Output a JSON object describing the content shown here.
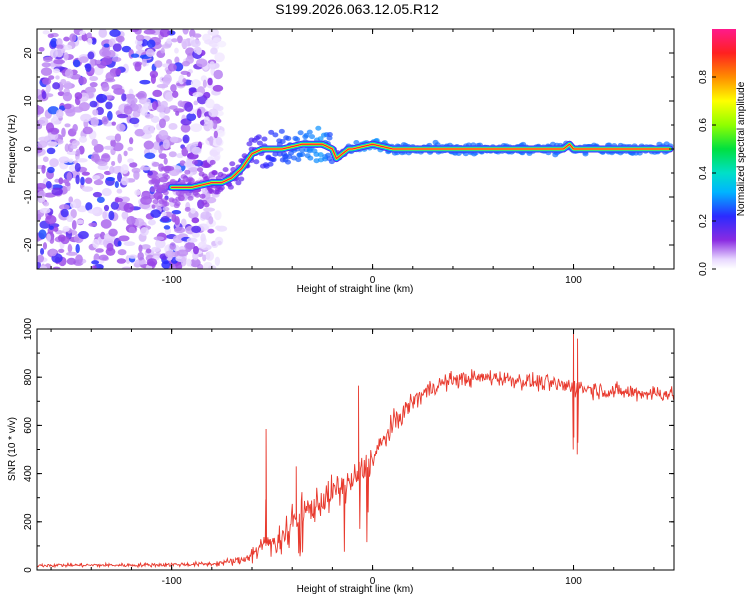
{
  "title": "S199.2026.063.12.05.R12",
  "chart_data": [
    {
      "type": "heatmap",
      "xlabel": "Height of straight line (km)",
      "ylabel": "Frequency (Hz)",
      "xlim": [
        -167,
        150
      ],
      "ylim": [
        -25,
        25
      ],
      "xticks": [
        -100,
        0,
        100
      ],
      "yticks": [
        -20,
        -10,
        0,
        10,
        20
      ],
      "colorbar": {
        "label": "Normalized spectral amplitude",
        "range": [
          0,
          1
        ],
        "ticks": [
          0.0,
          0.2,
          0.4,
          0.6,
          0.8
        ],
        "tick_labels": [
          "0.0",
          "0.2",
          "0.4",
          "0.6",
          "0.8"
        ]
      },
      "noise_region_x": [
        -167,
        -75
      ],
      "ridge": {
        "x": [
          -100,
          -90,
          -80,
          -75,
          -70,
          -65,
          -60,
          -55,
          -50,
          -45,
          -40,
          -35,
          -30,
          -25,
          -20,
          -18,
          -15,
          -12,
          -10,
          -5,
          0,
          5,
          10,
          20,
          40,
          60,
          80,
          95,
          98,
          100,
          120,
          148
        ],
        "freq": [
          -8,
          -8,
          -7,
          -7,
          -6,
          -4,
          -1,
          0,
          0,
          0,
          0.5,
          1,
          1,
          1,
          0,
          -2,
          -1,
          0,
          0,
          0.5,
          1,
          0.5,
          0,
          0,
          0,
          0,
          0,
          0,
          1,
          0,
          0,
          0
        ],
        "amp": [
          0.25,
          0.35,
          0.4,
          0.45,
          0.5,
          0.55,
          0.6,
          0.65,
          0.75,
          0.8,
          0.85,
          0.9,
          0.95,
          1.0,
          0.8,
          0.6,
          0.7,
          0.85,
          0.9,
          0.95,
          1.0,
          0.95,
          0.9,
          0.9,
          0.9,
          0.9,
          0.9,
          0.9,
          0.85,
          0.9,
          0.9,
          0.9
        ]
      }
    },
    {
      "type": "line",
      "xlabel": "Height of straight line (km)",
      "ylabel": "SNR (10 * v/v)",
      "xlim": [
        -167,
        150
      ],
      "ylim": [
        0,
        1000
      ],
      "xticks": [
        -100,
        0,
        100
      ],
      "yticks": [
        0,
        200,
        400,
        600,
        800,
        1000
      ],
      "color": "#e83a2e",
      "envelope": {
        "x": [
          -167,
          -120,
          -80,
          -65,
          -55,
          -50,
          -45,
          -40,
          -30,
          -20,
          -10,
          0,
          10,
          20,
          30,
          40,
          60,
          80,
          100,
          120,
          150
        ],
        "mean": [
          20,
          20,
          25,
          40,
          100,
          120,
          150,
          200,
          260,
          320,
          370,
          460,
          600,
          700,
          760,
          790,
          800,
          780,
          760,
          740,
          730
        ],
        "noise": [
          8,
          8,
          10,
          20,
          45,
          60,
          70,
          70,
          70,
          70,
          70,
          60,
          50,
          45,
          40,
          35,
          35,
          35,
          40,
          35,
          35
        ]
      },
      "spikes": [
        {
          "x": -53,
          "y": 585
        },
        {
          "x": -38,
          "y": 430
        },
        {
          "x": -7,
          "y": 765
        },
        {
          "x": 100,
          "y": 1000
        },
        {
          "x": 102,
          "y": 960
        }
      ]
    }
  ]
}
